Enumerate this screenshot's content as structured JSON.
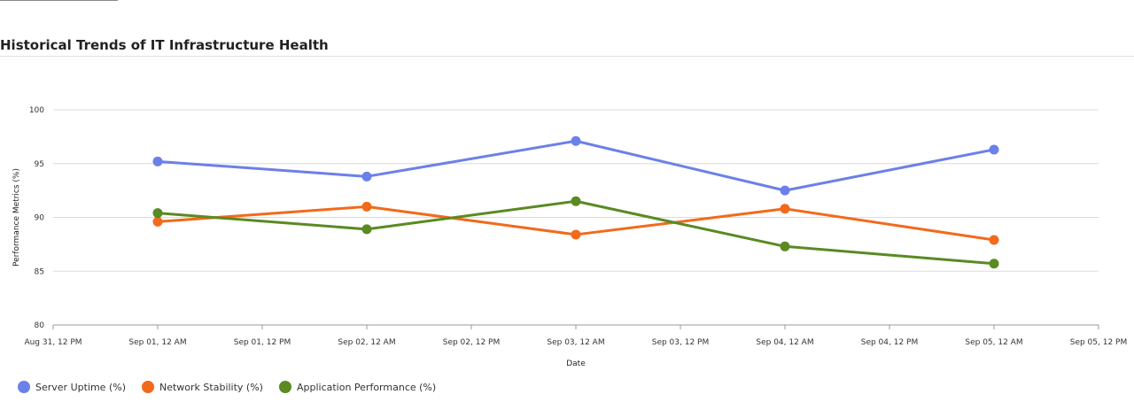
{
  "title": "Historical Trends of IT Infrastructure Health",
  "chart_data": {
    "type": "line",
    "title": "",
    "xlabel": "Date",
    "ylabel": "Performance Metrics (%)",
    "x": [
      "2023-09-01",
      "2023-09-02",
      "2023-09-03",
      "2023-09-04",
      "2023-09-05"
    ],
    "x_tick_labels": [
      "Aug 31, 12 PM",
      "Sep 01, 12 AM",
      "Sep 01, 12 PM",
      "Sep 02, 12 AM",
      "Sep 02, 12 PM",
      "Sep 03, 12 AM",
      "Sep 03, 12 PM",
      "Sep 04, 12 AM",
      "Sep 04, 12 PM",
      "Sep 05, 12 AM",
      "Sep 05, 12 PM"
    ],
    "ylim": [
      80,
      100
    ],
    "y_ticks": [
      80,
      85,
      90,
      95,
      100
    ],
    "grid": true,
    "legend_position": "bottom-left",
    "series": [
      {
        "name": "Server Uptime (%)",
        "color": "#6b80e8",
        "values": [
          95.2,
          93.8,
          97.1,
          92.5,
          96.3
        ]
      },
      {
        "name": "Network Stability (%)",
        "color": "#f26a1b",
        "values": [
          89.6,
          91.0,
          88.4,
          90.8,
          87.9
        ]
      },
      {
        "name": "Application Performance (%)",
        "color": "#5a8a22",
        "values": [
          90.4,
          88.9,
          91.5,
          87.3,
          85.7
        ]
      }
    ]
  }
}
